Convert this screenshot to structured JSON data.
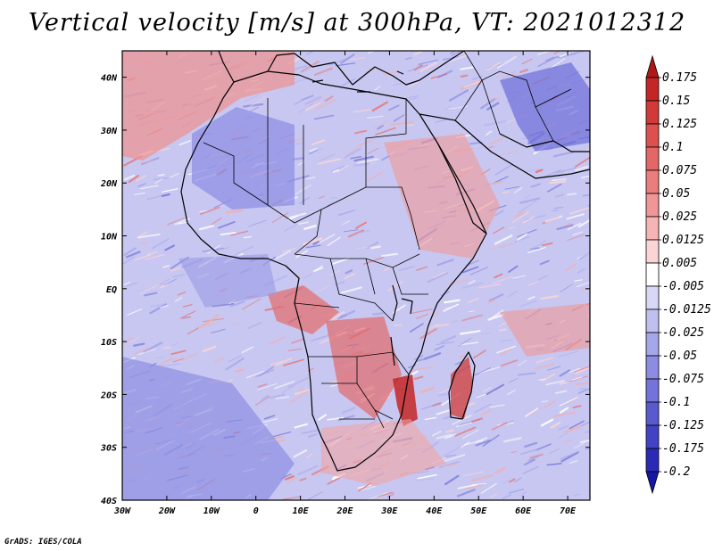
{
  "title": "Vertical velocity [m/s] at 300hPa, VT: 2021012312",
  "footer": "GrADS: IGES/COLA",
  "map": {
    "lon_ticks": [
      "30W",
      "20W",
      "10W",
      "0",
      "10E",
      "20E",
      "30E",
      "40E",
      "50E",
      "60E",
      "70E"
    ],
    "lat_ticks": [
      "40N",
      "30N",
      "20N",
      "10N",
      "EQ",
      "10S",
      "20S",
      "30S",
      "40S"
    ],
    "lon_range": [
      -30,
      75
    ],
    "lat_range": [
      -40,
      45
    ]
  },
  "colorbar": {
    "labels": [
      "0.175",
      "0.15",
      "0.125",
      "0.1",
      "0.075",
      "0.05",
      "0.025",
      "0.0125",
      "0.005",
      "-0.005",
      "-0.0125",
      "-0.025",
      "-0.05",
      "-0.075",
      "-0.1",
      "-0.125",
      "-0.175",
      "-0.2"
    ],
    "colors": [
      "#b01818",
      "#c42626",
      "#d23a3a",
      "#de5050",
      "#e56666",
      "#eb7d7d",
      "#f19696",
      "#f6b4b4",
      "#fbd5d5",
      "#ffffff",
      "#d8d8f6",
      "#c0c0f0",
      "#a6a6ea",
      "#8c8ce2",
      "#7373da",
      "#5a5ad0",
      "#4242c4",
      "#2a2ab6",
      "#1616a6"
    ]
  }
}
